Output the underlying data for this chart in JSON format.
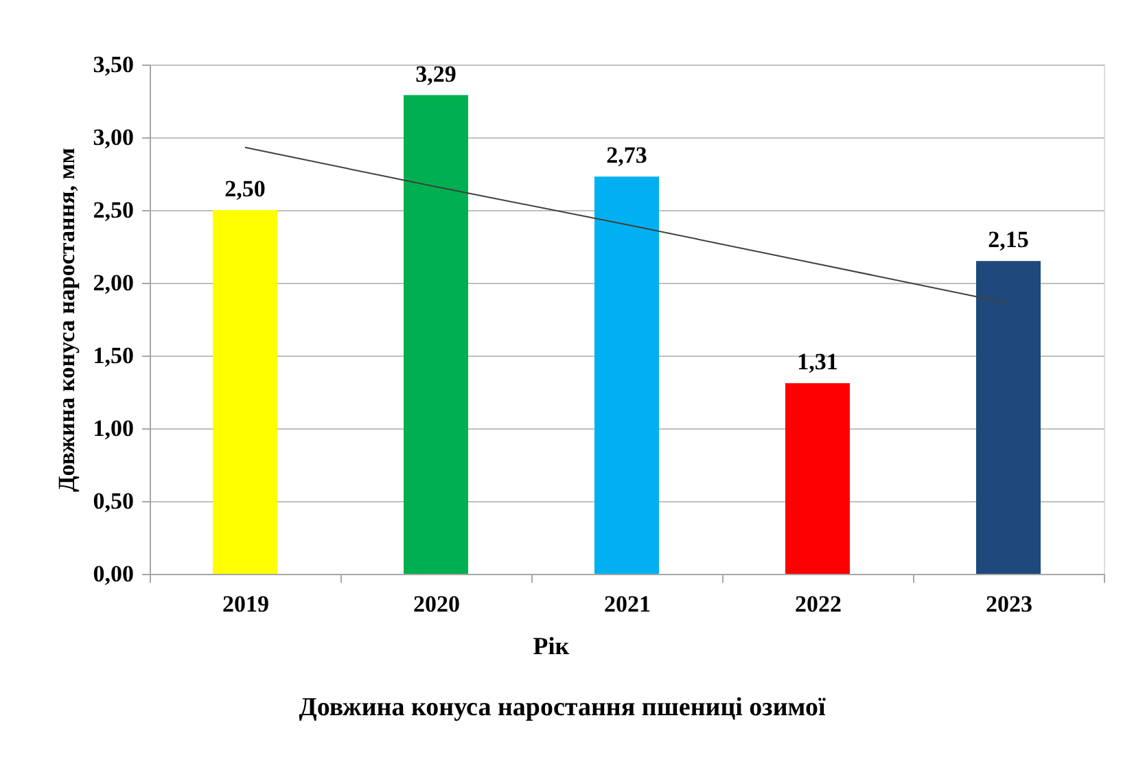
{
  "chart_data": {
    "type": "bar",
    "title": "Довжина конуса наростання пшениці озимої",
    "xlabel": "Рік",
    "ylabel": "Довжина конуса наростання, мм",
    "categories": [
      "2019",
      "2020",
      "2021",
      "2022",
      "2023"
    ],
    "series": [
      {
        "colors": [
          "#ffff00",
          "#00b050",
          "#00b0f0",
          "#ff0000",
          "#1f497d"
        ],
        "values": [
          2.5,
          3.29,
          2.73,
          1.31,
          2.15
        ],
        "value_labels": [
          "2,50",
          "3,29",
          "2,73",
          "1,31",
          "2,15"
        ]
      },
      {
        "type": "line",
        "values": [
          2.93,
          2.66,
          2.4,
          2.13,
          1.86
        ],
        "color": "#404040"
      }
    ],
    "ylim": [
      0,
      3.5
    ],
    "yticks": [
      {
        "value": 0,
        "label": "0,00"
      },
      {
        "value": 0.5,
        "label": "0,50"
      },
      {
        "value": 1,
        "label": "1,00"
      },
      {
        "value": 1.5,
        "label": "1,50"
      },
      {
        "value": 2,
        "label": "2,00"
      },
      {
        "value": 2.5,
        "label": "2,50"
      },
      {
        "value": 3,
        "label": "3,00"
      },
      {
        "value": 3.5,
        "label": "3,50"
      }
    ],
    "grid": "y"
  }
}
